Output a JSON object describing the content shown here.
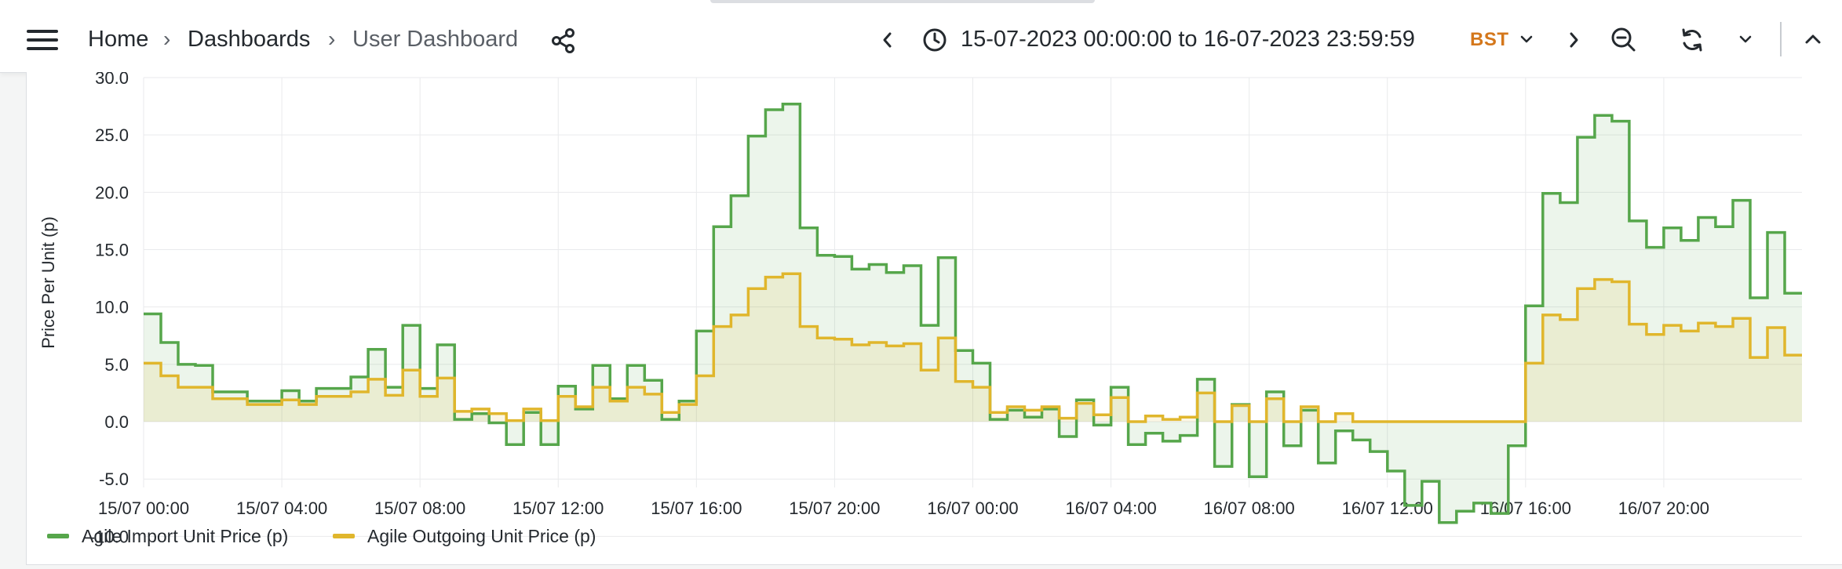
{
  "nav": {
    "breadcrumb": [
      "Home",
      "Dashboards",
      "User Dashboard"
    ],
    "breadcrumb_separator": "›",
    "time_range": "15-07-2023 00:00:00 to 16-07-2023 23:59:59",
    "timezone": "BST",
    "icons": [
      "menu-icon",
      "share-icon",
      "chevron-left-icon",
      "clock-icon",
      "chevron-down-icon",
      "chevron-right-icon",
      "zoom-out-icon",
      "refresh-icon",
      "chevron-down-icon",
      "chevron-up-icon"
    ]
  },
  "colors": {
    "import": "#56a64b",
    "outgoing": "#e0b62c",
    "timezone_text": "#d4771b"
  },
  "chart_data": {
    "type": "line",
    "line_style": "step",
    "title": "",
    "ylabel": "Price Per Unit (p)",
    "xlabel": "",
    "ylim": [
      -11,
      30
    ],
    "yticks": [
      -10,
      -5,
      0,
      5,
      10,
      15,
      20,
      25,
      30
    ],
    "ytick_labels": [
      "-10.0",
      "-5.0",
      "0.0",
      "5.0",
      "10.0",
      "15.0",
      "20.0",
      "25.0",
      "30.0"
    ],
    "xticks": [
      "15/07 00:00",
      "15/07 04:00",
      "15/07 08:00",
      "15/07 12:00",
      "15/07 16:00",
      "15/07 20:00",
      "16/07 00:00",
      "16/07 04:00",
      "16/07 08:00",
      "16/07 12:00",
      "16/07 16:00",
      "16/07 20:00"
    ],
    "x_interval_minutes": 30,
    "x_start": "15/07 00:00",
    "grid": true,
    "legend_position": "bottom-left",
    "series": [
      {
        "name": "Agile Import Unit Price (p)",
        "values": [
          9.4,
          6.9,
          5.0,
          4.9,
          2.6,
          2.6,
          1.8,
          1.8,
          2.7,
          1.8,
          2.9,
          2.9,
          3.9,
          6.3,
          3.0,
          8.4,
          2.9,
          6.7,
          0.2,
          0.7,
          -0.1,
          -2.0,
          0.8,
          -2.0,
          3.1,
          1.1,
          4.9,
          2.0,
          4.9,
          3.6,
          0.2,
          1.8,
          7.9,
          17.0,
          19.7,
          24.9,
          27.2,
          27.7,
          16.9,
          14.5,
          14.4,
          13.3,
          13.7,
          13.0,
          13.6,
          8.4,
          14.3,
          6.2,
          5.1,
          0.2,
          1.0,
          0.4,
          1.1,
          -1.3,
          1.9,
          -0.3,
          3.0,
          -2.0,
          -1.0,
          -1.7,
          -1.2,
          3.7,
          -3.9,
          1.5,
          -4.8,
          2.6,
          -2.1,
          1.0,
          -3.6,
          -0.8,
          -1.6,
          -2.6,
          -4.3,
          -7.3,
          -5.2,
          -8.8,
          -7.8,
          -7.1,
          -8.0,
          -2.1,
          10.1,
          19.9,
          19.1,
          24.8,
          26.7,
          26.2,
          17.5,
          15.2,
          16.9,
          15.8,
          17.8,
          17.0,
          19.3,
          10.8,
          16.5,
          11.2
        ]
      },
      {
        "name": "Agile Outgoing Unit Price (p)",
        "values": [
          5.1,
          4.0,
          3.0,
          3.0,
          2.0,
          2.0,
          1.5,
          1.5,
          1.9,
          1.5,
          2.2,
          2.2,
          2.6,
          3.7,
          2.3,
          4.5,
          2.2,
          3.8,
          0.9,
          1.1,
          0.7,
          0.1,
          1.1,
          0.1,
          2.2,
          1.3,
          3.0,
          1.8,
          3.0,
          2.4,
          0.8,
          1.5,
          4.0,
          8.3,
          9.3,
          11.6,
          12.6,
          12.9,
          8.3,
          7.3,
          7.2,
          6.7,
          6.9,
          6.6,
          6.8,
          4.5,
          7.3,
          3.5,
          3.0,
          0.8,
          1.3,
          1.0,
          1.3,
          0.3,
          1.6,
          0.6,
          2.1,
          0.0,
          0.5,
          0.2,
          0.4,
          2.5,
          0.0,
          1.4,
          0.0,
          2.0,
          0.0,
          1.3,
          0.0,
          0.7,
          0.0,
          0.0,
          0.0,
          0.0,
          0.0,
          0.0,
          0.0,
          0.0,
          0.0,
          0.0,
          5.1,
          9.3,
          8.9,
          11.6,
          12.4,
          12.2,
          8.5,
          7.6,
          8.4,
          7.9,
          8.6,
          8.3,
          9.0,
          5.6,
          8.2,
          5.8
        ]
      }
    ]
  }
}
